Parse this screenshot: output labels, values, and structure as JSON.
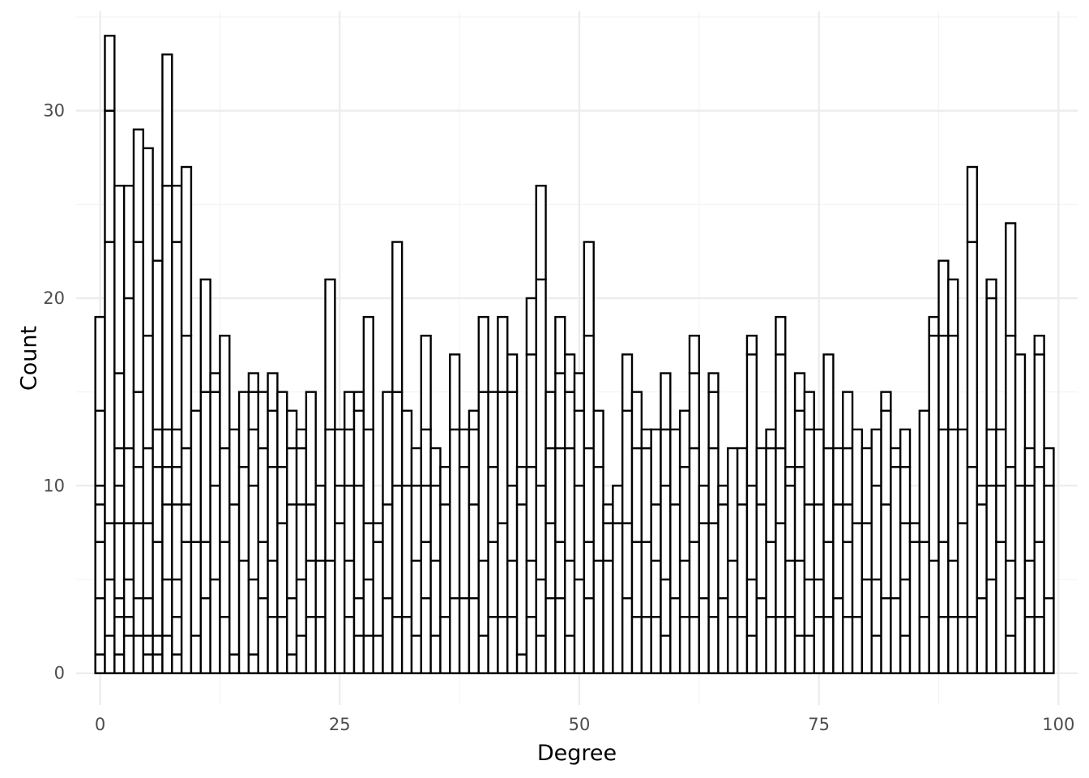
{
  "chart_data": {
    "type": "bar",
    "subtype": "stacked-histogram-outline",
    "title": "",
    "xlabel": "Degree",
    "ylabel": "Count",
    "xlim": [
      -2.5,
      102.0
    ],
    "ylim": [
      -1.7,
      35.3
    ],
    "x_ticks": [
      0,
      25,
      50,
      75,
      100
    ],
    "y_ticks": [
      0,
      10,
      20,
      30
    ],
    "x_tick_labels": [
      "0",
      "25",
      "50",
      "75",
      "100"
    ],
    "y_tick_labels": [
      "0",
      "10",
      "20",
      "30"
    ],
    "bin_width": 1,
    "fill_color": "#ffffff",
    "outline_color": "#000000",
    "grid": true,
    "legend": "none",
    "totals": [
      19,
      34,
      26,
      26,
      29,
      28,
      22,
      33,
      26,
      27,
      14,
      21,
      16,
      18,
      13,
      15,
      16,
      15,
      16,
      15,
      14,
      13,
      15,
      10,
      21,
      13,
      15,
      15,
      19,
      8,
      15,
      23,
      14,
      12,
      18,
      12,
      11,
      17,
      13,
      14,
      19,
      15,
      19,
      17,
      11,
      20,
      26,
      15,
      19,
      17,
      16,
      23,
      14,
      9,
      10,
      17,
      15,
      13,
      13,
      16,
      13,
      14,
      18,
      10,
      16,
      10,
      12,
      12,
      18,
      12,
      13,
      19,
      11,
      16,
      15,
      13,
      17,
      12,
      15,
      13,
      12,
      13,
      15,
      12,
      13,
      8,
      14,
      19,
      22,
      21,
      13,
      27,
      10,
      21,
      13,
      24,
      17,
      12,
      18,
      12
    ],
    "stack_boundaries": [
      [
        1,
        4,
        7,
        9,
        10,
        14
      ],
      [
        2,
        5,
        8,
        23,
        30
      ],
      [
        1,
        3,
        4,
        8,
        10,
        12,
        16
      ],
      [
        2,
        3,
        5,
        8,
        12,
        20
      ],
      [
        2,
        4,
        8,
        11,
        15,
        23
      ],
      [
        1,
        2,
        4,
        8,
        12,
        18
      ],
      [
        1,
        2,
        7,
        11,
        13
      ],
      [
        2,
        5,
        9,
        11,
        13,
        26
      ],
      [
        1,
        3,
        5,
        9,
        11,
        13,
        23
      ],
      [
        7,
        9,
        12,
        18
      ],
      [
        2,
        7
      ],
      [
        4,
        7,
        15
      ],
      [
        5,
        10,
        15
      ],
      [
        3,
        7,
        12
      ],
      [
        1,
        9,
        13
      ],
      [
        6,
        11
      ],
      [
        1,
        5,
        10,
        13,
        15
      ],
      [
        4,
        7,
        12,
        15
      ],
      [
        3,
        6,
        11,
        14
      ],
      [
        3,
        8,
        11
      ],
      [
        1,
        4,
        9,
        12
      ],
      [
        2,
        5,
        9,
        12
      ],
      [
        3,
        6,
        9
      ],
      [
        3,
        6
      ],
      [
        6,
        13
      ],
      [
        8,
        10,
        13
      ],
      [
        3,
        6,
        10,
        13
      ],
      [
        2,
        4,
        10,
        14
      ],
      [
        2,
        5,
        8,
        13
      ],
      [
        2,
        7
      ],
      [
        4,
        9,
        15
      ],
      [
        3,
        10,
        15
      ],
      [
        3,
        10
      ],
      [
        2,
        6,
        10
      ],
      [
        4,
        7,
        10,
        13
      ],
      [
        2,
        6,
        10,
        12
      ],
      [
        3,
        9
      ],
      [
        4,
        13
      ],
      [
        4,
        11,
        13
      ],
      [
        4,
        9,
        13
      ],
      [
        2,
        6,
        15
      ],
      [
        3,
        7,
        11,
        15
      ],
      [
        3,
        8,
        15
      ],
      [
        3,
        6,
        10,
        15
      ],
      [
        1,
        9
      ],
      [
        3,
        6,
        11,
        17
      ],
      [
        2,
        5,
        10,
        21
      ],
      [
        4,
        8,
        12
      ],
      [
        4,
        7,
        12,
        16
      ],
      [
        2,
        6,
        12,
        15
      ],
      [
        5,
        10,
        14
      ],
      [
        4,
        7,
        12,
        18
      ],
      [
        6,
        11
      ],
      [
        6,
        8
      ],
      [
        8
      ],
      [
        4,
        8,
        14
      ],
      [
        3,
        7,
        12
      ],
      [
        3,
        7,
        12
      ],
      [
        3,
        6,
        9
      ],
      [
        2,
        5,
        10,
        13
      ],
      [
        4,
        9,
        13
      ],
      [
        3,
        6,
        11
      ],
      [
        3,
        7,
        12,
        16
      ],
      [
        4,
        8
      ],
      [
        3,
        8,
        12,
        15
      ],
      [
        4,
        9
      ],
      [
        3,
        6
      ],
      [
        3,
        9
      ],
      [
        2,
        5,
        10,
        17
      ],
      [
        4,
        9
      ],
      [
        3,
        7,
        12
      ],
      [
        3,
        8,
        12,
        17
      ],
      [
        3,
        6,
        10
      ],
      [
        2,
        6,
        11,
        14
      ],
      [
        2,
        5,
        9,
        13
      ],
      [
        3,
        5,
        9
      ],
      [
        3,
        7,
        12
      ],
      [
        4,
        9
      ],
      [
        3,
        7,
        9,
        12
      ],
      [
        3,
        8
      ],
      [
        5,
        8
      ],
      [
        2,
        5,
        10
      ],
      [
        4,
        9,
        14
      ],
      [
        4,
        11
      ],
      [
        2,
        5,
        8,
        11
      ],
      [
        7
      ],
      [
        3,
        7
      ],
      [
        6,
        18
      ],
      [
        3,
        7,
        13,
        18
      ],
      [
        3,
        6,
        13,
        18
      ],
      [
        3,
        8,
        13
      ],
      [
        3,
        11,
        23
      ],
      [
        4,
        9
      ],
      [
        5,
        10,
        13,
        20
      ],
      [
        7,
        10,
        13
      ],
      [
        2,
        6,
        11,
        18
      ],
      [
        4,
        10
      ],
      [
        3,
        6,
        10
      ],
      [
        3,
        7,
        11,
        17
      ],
      [
        4,
        10
      ]
    ]
  }
}
